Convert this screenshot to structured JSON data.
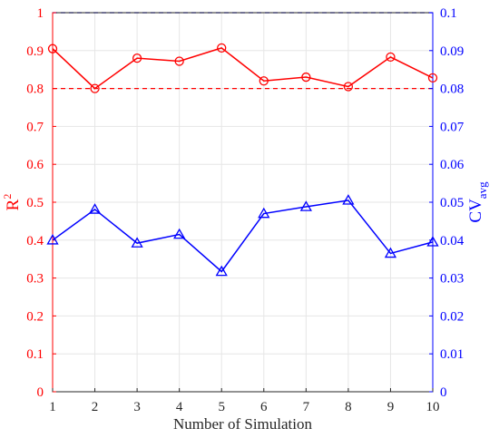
{
  "chart_data": {
    "type": "line",
    "xlabel": "Number of Simulation",
    "ylabel_left": {
      "base": "R",
      "sup": "2"
    },
    "ylabel_right": {
      "base": "CV",
      "sub": "avg"
    },
    "x": [
      1,
      2,
      3,
      4,
      5,
      6,
      7,
      8,
      9,
      10
    ],
    "xlim": [
      1,
      10
    ],
    "ylim_left": [
      0,
      1
    ],
    "ylim_right": [
      0,
      0.1
    ],
    "grid": true,
    "x_ticks": [
      "1",
      "2",
      "3",
      "4",
      "5",
      "6",
      "7",
      "8",
      "9",
      "10"
    ],
    "y_ticks_left": [
      "0",
      "0.1",
      "0.2",
      "0.3",
      "0.4",
      "0.5",
      "0.6",
      "0.7",
      "0.8",
      "0.9",
      "1"
    ],
    "y_ticks_right": [
      "0",
      "0.01",
      "0.02",
      "0.03",
      "0.04",
      "0.05",
      "0.06",
      "0.07",
      "0.08",
      "0.09",
      "0.1"
    ],
    "series": [
      {
        "axis": "left",
        "color": "#ff0000",
        "marker": "circle",
        "values": [
          0.905,
          0.8,
          0.88,
          0.872,
          0.907,
          0.82,
          0.83,
          0.805,
          0.883,
          0.828
        ]
      },
      {
        "axis": "right",
        "color": "#0000ff",
        "marker": "triangle",
        "values": [
          0.04,
          0.0481,
          0.0392,
          0.0415,
          0.0317,
          0.047,
          0.0488,
          0.0505,
          0.0365,
          0.0395
        ]
      }
    ],
    "reference_lines": [
      {
        "axis": "left",
        "value": 0.8,
        "color": "#ff0000",
        "style": "dashed"
      },
      {
        "axis": "right",
        "value": 0.1,
        "color": "#0000ff",
        "style": "dashed"
      }
    ]
  }
}
